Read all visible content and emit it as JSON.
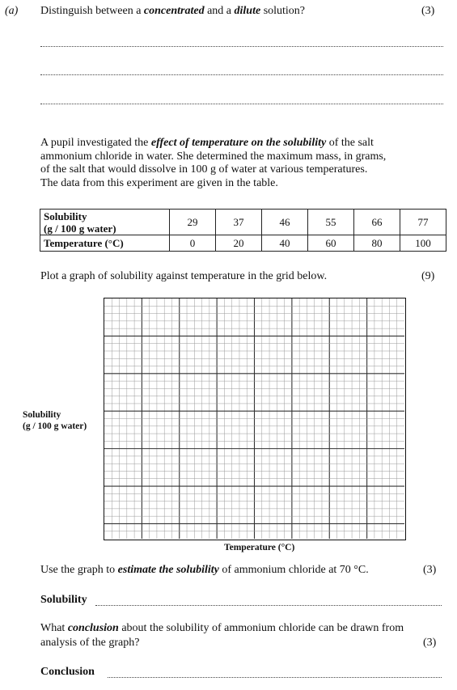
{
  "question_a": {
    "label": "(a)",
    "text_before": "Distinguish between a ",
    "term1": "concentrated",
    "text_mid": " and a ",
    "term2": "dilute",
    "text_after": " solution?",
    "marks": "(3)"
  },
  "intro": {
    "line1_start": "A pupil investigated the ",
    "line1_emph": "effect of temperature on the solubility",
    "line1_end": " of the salt",
    "line2": "ammonium chloride in water. She determined the maximum mass, in grams,",
    "line3": "of the salt that would dissolve in 100 g of water at various temperatures.",
    "line4": "The data from this experiment are given in the table."
  },
  "table": {
    "solubility_label_1": "Solubility",
    "solubility_label_2": "(g / 100 g water)",
    "temperature_label": "Temperature (°C)",
    "solubility_values": [
      "29",
      "37",
      "46",
      "55",
      "66",
      "77"
    ],
    "temperature_values": [
      "0",
      "20",
      "40",
      "60",
      "80",
      "100"
    ]
  },
  "plot_instruction": {
    "text": "Plot a graph of solubility against temperature in the grid below.",
    "marks": "(9)"
  },
  "graph": {
    "y_label_1": "Solubility",
    "y_label_2": "(g / 100 g water)",
    "x_label": "Temperature (°C)"
  },
  "estimate": {
    "text_before": "Use the graph to ",
    "emph": "estimate the solubility",
    "text_after": " of ammonium chloride at 70 °C.",
    "marks": "(3)",
    "answer_label": "Solubility"
  },
  "conclusion": {
    "line1_before": "What ",
    "emph": "conclusion",
    "line1_after": " about the solubility of ammonium chloride can be drawn from",
    "line2": "analysis of the graph?",
    "marks": "(3)",
    "answer_label": "Conclusion"
  }
}
